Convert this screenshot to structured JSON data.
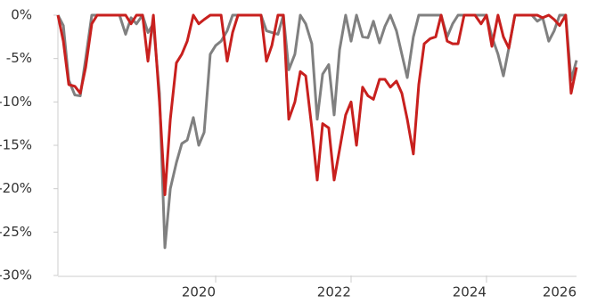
{
  "chart_data": {
    "type": "line",
    "x": [
      2017.67,
      2017.75,
      2017.83,
      2017.92,
      2018,
      2018.08,
      2018.17,
      2018.25,
      2018.33,
      2018.42,
      2018.5,
      2018.58,
      2018.67,
      2018.75,
      2018.83,
      2018.92,
      2019,
      2019.08,
      2019.17,
      2019.25,
      2019.33,
      2019.42,
      2019.5,
      2019.58,
      2019.67,
      2019.75,
      2019.83,
      2019.92,
      2020,
      2020.08,
      2020.17,
      2020.25,
      2020.33,
      2020.42,
      2020.5,
      2020.58,
      2020.67,
      2020.75,
      2020.83,
      2020.92,
      2021,
      2021.08,
      2021.17,
      2021.25,
      2021.33,
      2021.42,
      2021.5,
      2021.58,
      2021.67,
      2021.75,
      2021.83,
      2021.92,
      2022,
      2022.08,
      2022.17,
      2022.25,
      2022.33,
      2022.42,
      2022.5,
      2022.58,
      2022.67,
      2022.75,
      2022.83,
      2022.92,
      2023,
      2023.08,
      2023.17,
      2023.25,
      2023.33,
      2023.42,
      2023.5,
      2023.58,
      2023.67,
      2023.75,
      2023.83,
      2023.92,
      2024,
      2024.08,
      2024.17,
      2024.25,
      2024.33,
      2024.42,
      2024.5,
      2024.58,
      2024.67,
      2024.75,
      2024.83,
      2024.92,
      2025,
      2025.08,
      2025.17,
      2025.25,
      2025.33
    ],
    "series": [
      {
        "color": "#808080",
        "values": [
          0,
          -1.2,
          -7.5,
          -9.2,
          -9.3,
          -5,
          0,
          0,
          0,
          0,
          0,
          0,
          -2.2,
          -0.3,
          -1,
          0,
          -2,
          -1,
          -9,
          -26.8,
          -20,
          -17,
          -14.8,
          -14.4,
          -11.8,
          -15,
          -13.5,
          -4.5,
          -3.5,
          -3,
          -1.8,
          0,
          0,
          0,
          0,
          0,
          0,
          -1.8,
          -2,
          -2.2,
          0,
          -6.3,
          -4.5,
          0,
          -1,
          -3.3,
          -12,
          -6.8,
          -5.7,
          -11.5,
          -4,
          0,
          -3,
          0,
          -2.5,
          -2.6,
          -0.7,
          -3.2,
          -1.3,
          0,
          -1.8,
          -4.5,
          -7.2,
          -2.5,
          0,
          0,
          0,
          0,
          0,
          -2.5,
          -1,
          0,
          0,
          0,
          0,
          0,
          0,
          -2.5,
          -4.5,
          -7,
          -3.8,
          0,
          0,
          0,
          0,
          -0.7,
          -0.3,
          -3,
          -1.8,
          0,
          0,
          -7.5,
          -5.2
        ]
      },
      {
        "color": "#c8201e",
        "values": [
          0,
          -3,
          -8,
          -8.2,
          -9,
          -6,
          -1,
          0,
          0,
          0,
          0,
          0,
          0,
          -1,
          0,
          0,
          -5.3,
          0,
          -10,
          -20.7,
          -12,
          -5.5,
          -4.5,
          -3,
          0,
          -1,
          -0.5,
          0,
          0,
          0,
          -5.3,
          -2,
          0,
          0,
          0,
          0,
          0,
          -5.3,
          -3.5,
          0,
          0,
          -12,
          -10,
          -6.5,
          -7,
          -13,
          -19,
          -12.5,
          -13,
          -19,
          -15.5,
          -11.5,
          -10,
          -15,
          -8.3,
          -9.3,
          -9.7,
          -7.4,
          -7.4,
          -8.3,
          -7.6,
          -9,
          -12,
          -16,
          -8,
          -3.3,
          -2.7,
          -2.5,
          0,
          -3,
          -3.3,
          -3.3,
          0,
          0,
          0,
          -1,
          0,
          -3.6,
          0,
          -2.5,
          -3.8,
          0,
          0,
          0,
          0,
          0,
          -0.3,
          0,
          -0.5,
          -1.2,
          0,
          -9,
          -6
        ]
      }
    ],
    "xlim": [
      2017.67,
      2025.33
    ],
    "xticks": [
      2020,
      2022,
      2024,
      2026
    ],
    "ylim": [
      -30,
      0
    ],
    "yticks": [
      {
        "value": 0,
        "label": "0%"
      },
      {
        "value": -5,
        "label": "-5%"
      },
      {
        "value": -10,
        "label": "-10%"
      },
      {
        "value": -15,
        "label": "-15%"
      },
      {
        "value": -20,
        "label": "-20%"
      },
      {
        "value": -25,
        "label": "-25%"
      },
      {
        "value": -30,
        "label": "-30%"
      }
    ]
  }
}
